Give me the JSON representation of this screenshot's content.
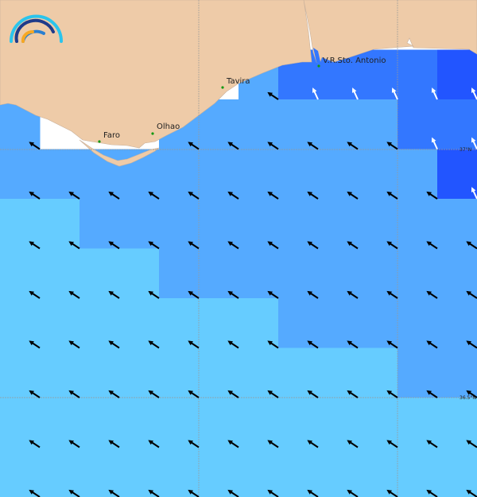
{
  "map": {
    "colors": {
      "land": "#eecba8",
      "no_data": "#ffffff",
      "levels": [
        "#66ccff",
        "#55aaff",
        "#3377ff",
        "#2255ff"
      ],
      "grid": "#999999",
      "city_marker": "#119911"
    },
    "cell_levels": [
      [
        -1,
        -1,
        -1,
        -1,
        -1,
        -1,
        -1,
        -1,
        -1,
        -1,
        -1,
        -1
      ],
      [
        -1,
        -1,
        -1,
        -1,
        -1,
        -1,
        1,
        2,
        2,
        2,
        2,
        3
      ],
      [
        1,
        -1,
        -1,
        -1,
        1,
        1,
        1,
        1,
        1,
        1,
        2,
        2
      ],
      [
        1,
        1,
        1,
        1,
        1,
        1,
        1,
        1,
        1,
        1,
        1,
        3
      ],
      [
        0,
        0,
        1,
        1,
        1,
        1,
        1,
        1,
        1,
        1,
        1,
        1
      ],
      [
        0,
        0,
        0,
        0,
        1,
        1,
        1,
        1,
        1,
        1,
        1,
        1
      ],
      [
        0,
        0,
        0,
        0,
        0,
        0,
        0,
        1,
        1,
        1,
        1,
        1
      ],
      [
        0,
        0,
        0,
        0,
        0,
        0,
        0,
        0,
        0,
        0,
        1,
        1
      ],
      [
        0,
        0,
        0,
        0,
        0,
        0,
        0,
        0,
        0,
        0,
        0,
        0
      ],
      [
        0,
        0,
        0,
        0,
        0,
        0,
        0,
        0,
        0,
        0,
        0,
        0
      ]
    ],
    "cities": [
      {
        "name": "Faro"
      },
      {
        "name": "Olhao"
      },
      {
        "name": "Tavira"
      },
      {
        "name": "V.R.Sto. Antonio"
      }
    ],
    "latitude_labels": [
      "37°N",
      "36.5°N"
    ],
    "arrow_direction": "north-west",
    "logo_icon": "rainbow-arcs-logo"
  }
}
